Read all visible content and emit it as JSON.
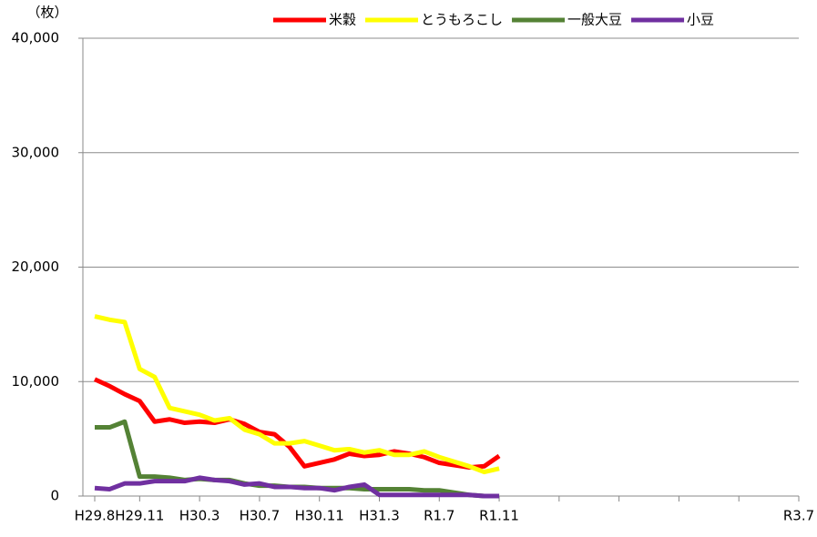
{
  "chart_data": {
    "type": "line",
    "y_label": "（枚）",
    "categories": [
      "H29.8",
      null,
      null,
      "H29.11",
      null,
      null,
      null,
      "H30.3",
      null,
      null,
      null,
      "H30.7",
      null,
      null,
      null,
      "H30.11",
      null,
      null,
      null,
      "H31.3",
      null,
      null,
      null,
      "R1.7",
      null,
      null,
      null,
      "R1.11",
      null,
      null,
      null,
      null,
      null,
      null,
      null,
      null,
      null,
      null,
      null,
      null,
      null,
      null,
      null,
      null,
      null,
      null,
      null,
      "R3.7"
    ],
    "series": [
      {
        "name": "米穀",
        "color": "#ff0000",
        "values": [
          10200,
          9600,
          8900,
          8300,
          6500,
          6700,
          6400,
          6500,
          6400,
          6700,
          6300,
          5600,
          5400,
          4300,
          2600,
          2900,
          3200,
          3700,
          3500,
          3600,
          3900,
          3700,
          3400,
          2900,
          2700,
          2500,
          2600,
          3500,
          null,
          null,
          null,
          null,
          null,
          null,
          null,
          null,
          null,
          null,
          null,
          null,
          null,
          null,
          null,
          null,
          null,
          null,
          null,
          null
        ]
      },
      {
        "name": "とうもろこし",
        "color": "#ffff00",
        "values": [
          15700,
          15400,
          15200,
          11100,
          10400,
          7700,
          7400,
          7100,
          6600,
          6800,
          5800,
          5400,
          4600,
          4600,
          4800,
          4400,
          4000,
          4100,
          3800,
          4000,
          3600,
          3600,
          3900,
          3400,
          3000,
          2600,
          2100,
          2400,
          null,
          null,
          null,
          null,
          null,
          null,
          null,
          null,
          null,
          null,
          null,
          null,
          null,
          null,
          null,
          null,
          null,
          null,
          null,
          null
        ]
      },
      {
        "name": "一般大豆",
        "color": "#548235",
        "values": [
          6000,
          6000,
          6500,
          1700,
          1700,
          1600,
          1400,
          1500,
          1400,
          1400,
          1100,
          900,
          900,
          800,
          800,
          700,
          700,
          700,
          600,
          600,
          600,
          600,
          500,
          500,
          300,
          100,
          0,
          0,
          null,
          null,
          null,
          null,
          null,
          null,
          null,
          null,
          null,
          null,
          null,
          null,
          null,
          null,
          null,
          null,
          null,
          null,
          null,
          null
        ]
      },
      {
        "name": "小豆",
        "color": "#7030a0",
        "values": [
          700,
          600,
          1100,
          1100,
          1300,
          1300,
          1300,
          1600,
          1400,
          1300,
          1000,
          1100,
          800,
          800,
          700,
          700,
          500,
          800,
          1000,
          100,
          100,
          100,
          100,
          100,
          100,
          100,
          0,
          0,
          null,
          null,
          null,
          null,
          null,
          null,
          null,
          null,
          null,
          null,
          null,
          null,
          null,
          null,
          null,
          null,
          null,
          null,
          null,
          null
        ]
      }
    ],
    "ylim": [
      0,
      40000
    ],
    "yticks": [
      0,
      {
        "value": 10000,
        "label": "10,000"
      },
      {
        "value": 20000,
        "label": "20,000"
      },
      {
        "value": 30000,
        "label": "30,000"
      },
      {
        "value": 40000,
        "label": "40,000"
      }
    ],
    "grid": true,
    "legend": "top"
  }
}
